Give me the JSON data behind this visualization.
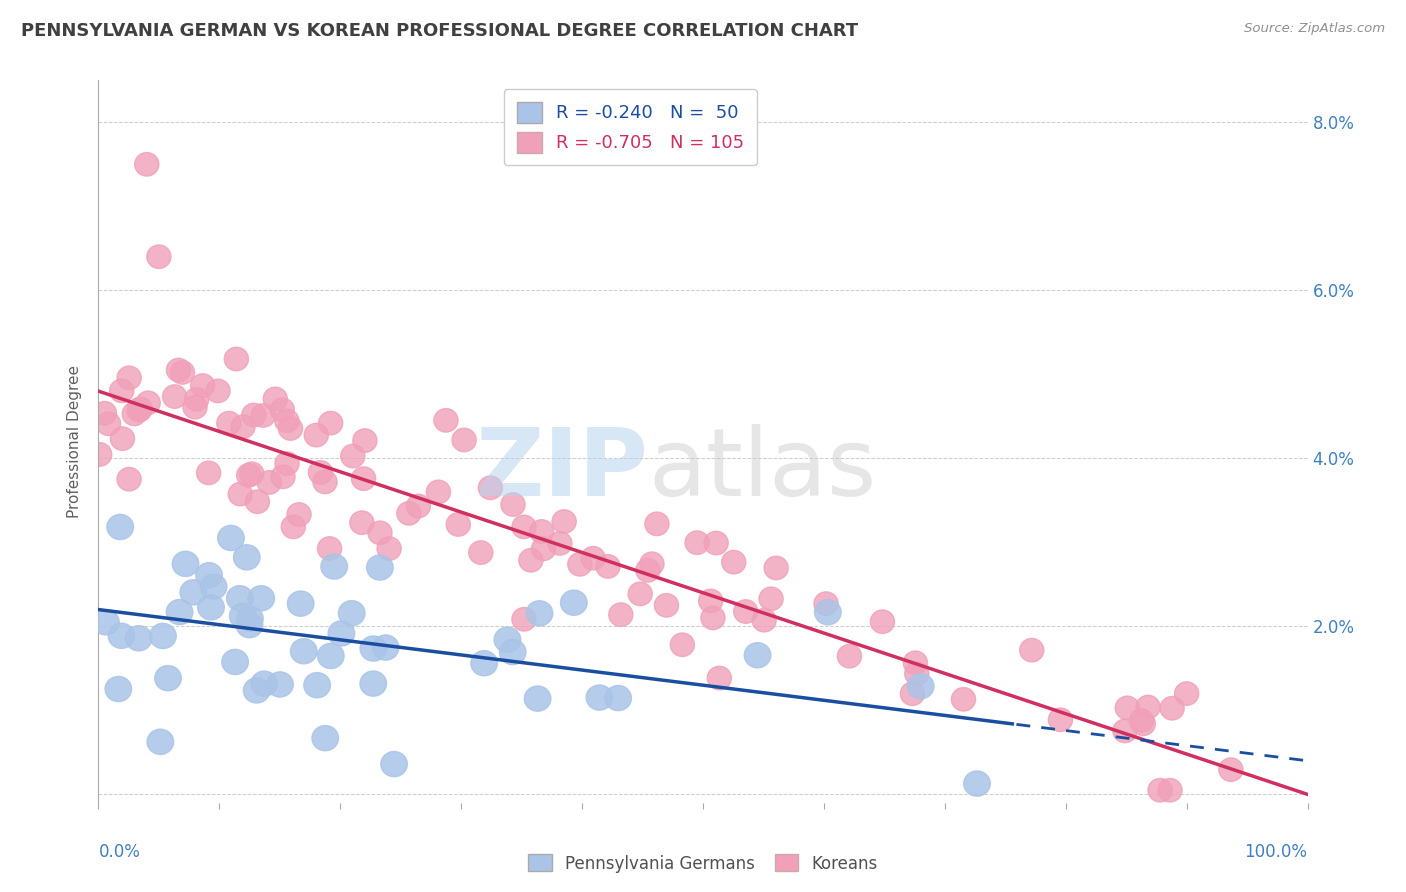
{
  "title": "PENNSYLVANIA GERMAN VS KOREAN PROFESSIONAL DEGREE CORRELATION CHART",
  "source_text": "Source: ZipAtlas.com",
  "ylabel": "Professional Degree",
  "xlim": [
    0,
    100
  ],
  "ylim": [
    -0.1,
    8.5
  ],
  "ytick_vals": [
    0,
    2,
    4,
    6,
    8
  ],
  "ytick_labels": [
    "",
    "2.0%",
    "4.0%",
    "6.0%",
    "8.0%"
  ],
  "blue_color": "#aac4e8",
  "pink_color": "#f0a0b8",
  "blue_line_color": "#1a4ea0",
  "pink_line_color": "#d03060",
  "blue_intercept": 2.2,
  "blue_slope": -0.018,
  "pink_intercept": 4.8,
  "pink_slope": -0.048,
  "background_color": "#ffffff",
  "grid_color": "#cccccc",
  "title_color": "#404040",
  "axis_label_color": "#4080c0"
}
